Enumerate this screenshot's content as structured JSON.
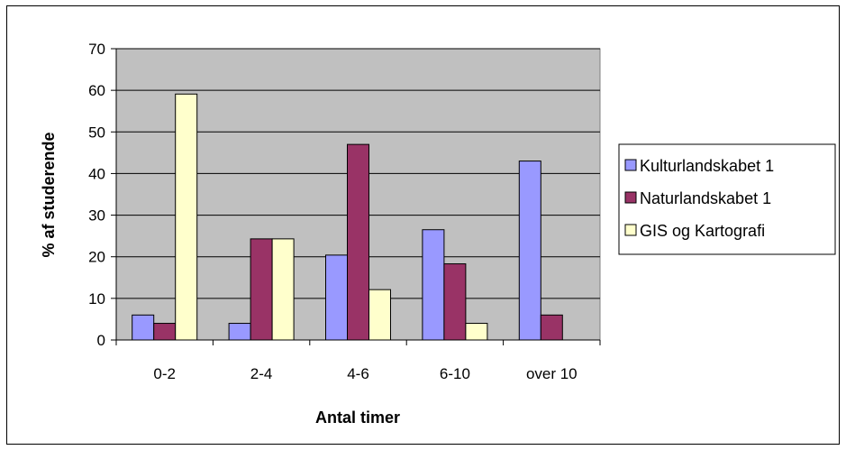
{
  "chart_data": {
    "type": "bar",
    "title": "",
    "xlabel": "Antal timer",
    "ylabel": "% af studerende",
    "categories": [
      "0-2",
      "2-4",
      "4-6",
      "6-10",
      "over 10"
    ],
    "ylim": [
      0,
      70
    ],
    "yticks": [
      "0",
      "10",
      "20",
      "30",
      "40",
      "50",
      "60",
      "70"
    ],
    "grid": true,
    "legend_position": "right",
    "plot_background": "#c0c0c0",
    "series": [
      {
        "name": "Kulturlandskabet 1",
        "color": "#9999ff",
        "values": [
          6,
          4,
          20.4,
          26.5,
          43
        ]
      },
      {
        "name": "Naturlandskabet 1",
        "color": "#993366",
        "values": [
          4,
          24.3,
          47,
          18.3,
          6
        ]
      },
      {
        "name": "GIS og Kartografi",
        "color": "#ffffcc",
        "values": [
          59.1,
          24.3,
          12.1,
          4,
          0
        ]
      }
    ]
  }
}
